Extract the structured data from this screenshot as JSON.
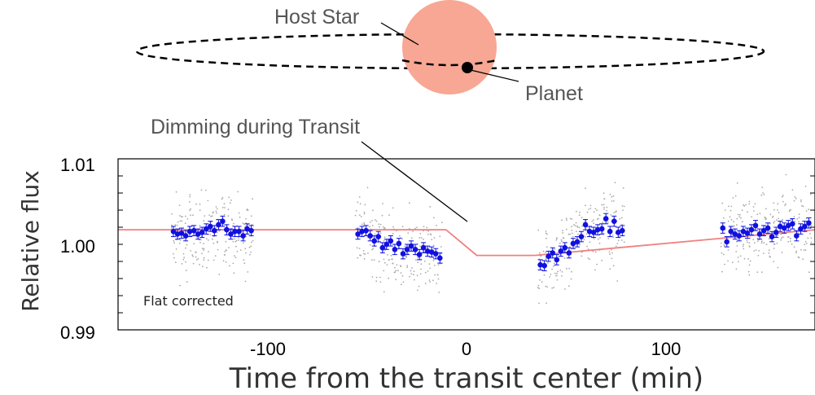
{
  "diagram": {
    "host_star_label": "Host Star",
    "planet_label": "Planet",
    "dimming_label": "Dimming during Transit",
    "star_color": "#f7a793",
    "planet_color": "#000000"
  },
  "chart_data": {
    "type": "scatter",
    "xlabel": "Time from the transit center (min)",
    "ylabel": "Relative flux",
    "annotation": "Flat corrected",
    "xlim": [
      -175,
      165
    ],
    "ylim": [
      0.99,
      1.01
    ],
    "xticks": [
      -100,
      0,
      100
    ],
    "xtick_labels": [
      "-100",
      "0",
      "100"
    ],
    "yticks": [
      0.99,
      1.0,
      1.01
    ],
    "ytick_labels": [
      "0.99",
      "1.00",
      "1.01"
    ],
    "grid": false,
    "colors": {
      "binned": "#1010e0",
      "model": "#f08080",
      "raw": "#aaaaaa"
    },
    "model": {
      "x": [
        -175,
        -15,
        0,
        28,
        165
      ],
      "y": [
        1.0017,
        1.0017,
        0.9987,
        0.9987,
        1.0017
      ]
    },
    "series": [
      {
        "x": [
          -148,
          -146,
          -144,
          -142,
          -140,
          -138,
          -136,
          -134,
          -132,
          -130,
          -128,
          -126,
          -124,
          -122,
          -120,
          -118,
          -116,
          -114,
          -112,
          -110,
          -58,
          -56,
          -54,
          -52,
          -50,
          -48,
          -46,
          -44,
          -42,
          -40,
          -38,
          -36,
          -34,
          -32,
          -30,
          -28,
          -26,
          -24,
          -22,
          -20,
          -18,
          31,
          33,
          35,
          37,
          39,
          41,
          43,
          45,
          47,
          49,
          51,
          53,
          55,
          57,
          59,
          61,
          63,
          65,
          67,
          69,
          71,
          120,
          122,
          124,
          126,
          128,
          130,
          132,
          134,
          136,
          138,
          140,
          142,
          144,
          146,
          148,
          150,
          152,
          154,
          156,
          158,
          160,
          162
        ],
        "y": [
          1.0015,
          1.0012,
          1.0013,
          1.001,
          1.0015,
          1.0016,
          1.0012,
          1.0014,
          1.0018,
          1.0021,
          1.0016,
          1.0023,
          1.0027,
          1.0017,
          1.0012,
          1.0015,
          1.0015,
          1.001,
          1.0018,
          1.0016,
          1.0012,
          1.0015,
          1.0016,
          1.001,
          1.0004,
          1.0009,
          0.9996,
          1.0,
          1.0004,
          0.9994,
          1.0001,
          0.9989,
          0.9994,
          0.9998,
          0.9994,
          0.9988,
          0.9996,
          0.9992,
          0.9991,
          0.9989,
          0.9984,
          0.9976,
          0.9975,
          0.9986,
          0.999,
          0.9982,
          0.9992,
          0.9996,
          0.999,
          1.0001,
          1.0003,
          1.0009,
          1.0023,
          1.0015,
          1.0014,
          1.0017,
          1.0018,
          1.003,
          1.0015,
          1.0027,
          1.0014,
          1.0016,
          1.0019,
          1.0003,
          1.0015,
          1.0012,
          1.001,
          1.0015,
          1.0013,
          1.0017,
          1.0022,
          1.0012,
          1.0016,
          1.0019,
          1.0009,
          1.0014,
          1.0021,
          1.0019,
          1.0022,
          1.0024,
          1.001,
          1.0018,
          1.0021,
          1.0025
        ]
      }
    ]
  }
}
